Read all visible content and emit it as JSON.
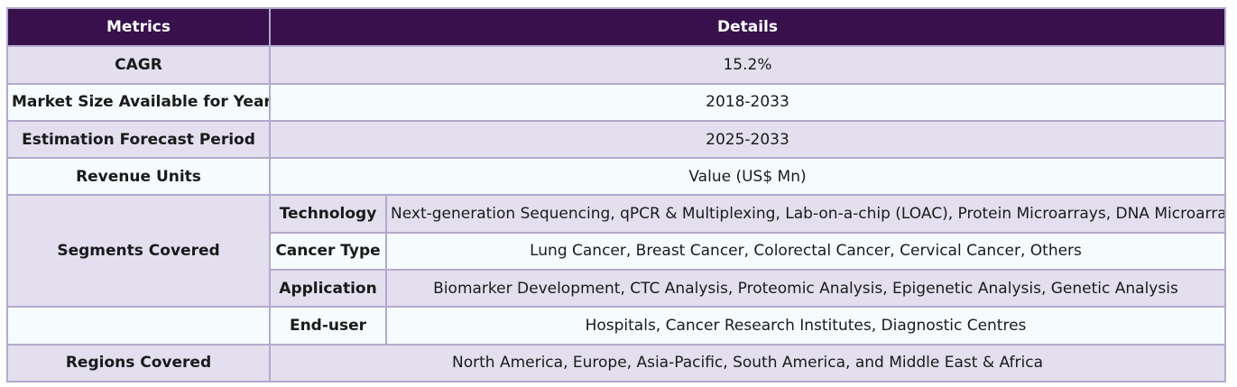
{
  "header": {
    "col1": "Metrics",
    "col2": "Details"
  },
  "rows": {
    "cagr": {
      "label": "CAGR",
      "value": "15.2%"
    },
    "market_size": {
      "label": "Market Size Available for Years",
      "value": "2018-2033"
    },
    "forecast": {
      "label": "Estimation Forecast Period",
      "value": "2025-2033"
    },
    "revenue": {
      "label": "Revenue Units",
      "value": "Value (US$ Mn)"
    },
    "segments": {
      "label": "Segments Covered",
      "technology": {
        "label": "Technology",
        "value": "Next-generation Sequencing, qPCR & Multiplexing, Lab-on-a-chip (LOAC), Protein Microarrays, DNA Microarrays"
      },
      "cancer_type": {
        "label": "Cancer Type",
        "value": "Lung Cancer, Breast Cancer, Colorectal Cancer, Cervical Cancer, Others"
      },
      "application": {
        "label": "Application",
        "value": "Biomarker Development, CTC Analysis, Proteomic Analysis, Epigenetic Analysis, Genetic Analysis"
      },
      "end_user": {
        "label": "End-user",
        "value": "Hospitals, Cancer Research Institutes, Diagnostic Centres"
      }
    },
    "regions": {
      "label": "Regions Covered",
      "value": "North America, Europe, Asia-Pacific, South America, and Middle East & Africa"
    }
  },
  "colors": {
    "header_bg": "#37104c",
    "row_lavender": "#e3dfee",
    "row_white": "#f6fbfd",
    "border": "#b3a9cc"
  }
}
